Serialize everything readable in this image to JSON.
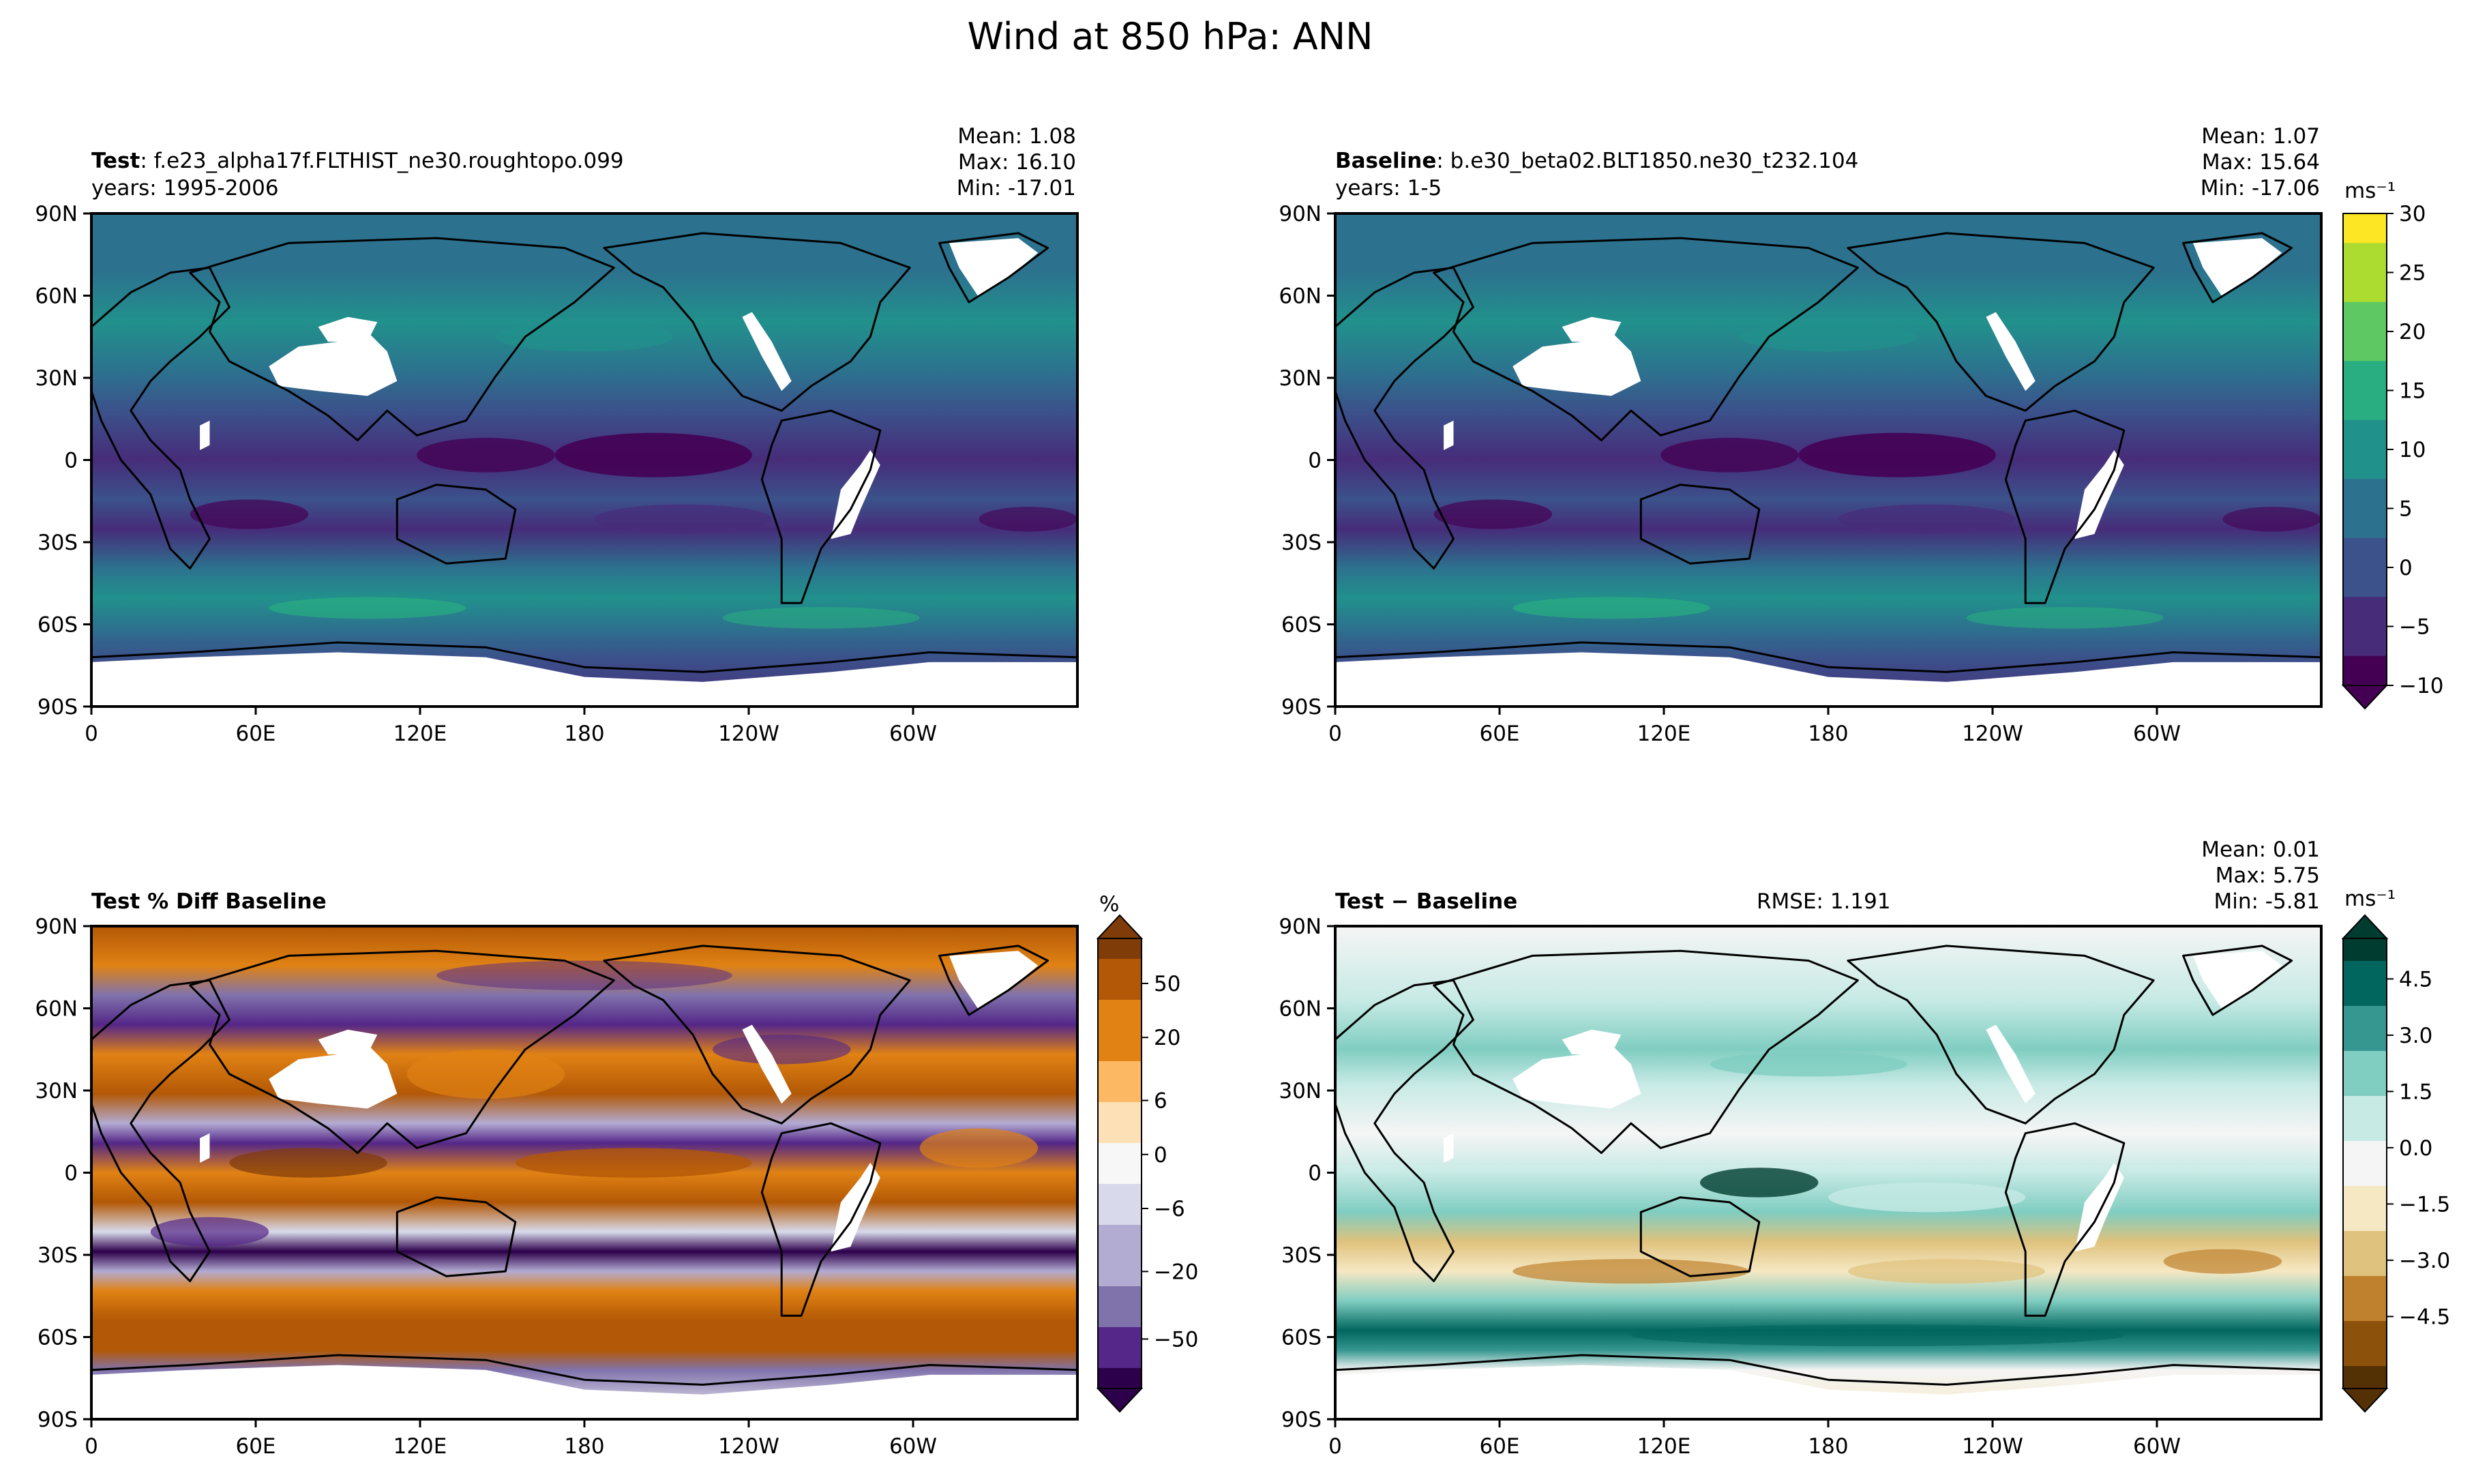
{
  "title": "Wind at 850 hPa: ANN",
  "colors": {
    "land_mask": "#ffffff",
    "coast": "#000000",
    "viridis": [
      "#440154",
      "#472c7a",
      "#3b528b",
      "#2c728e",
      "#21918c",
      "#28ae80",
      "#5ec962",
      "#addc30",
      "#fde725"
    ],
    "puor": [
      "#2d004b",
      "#542788",
      "#8073ac",
      "#b2abd2",
      "#d8daeb",
      "#f7f7f7",
      "#fee0b6",
      "#fdb863",
      "#e08214",
      "#b35806",
      "#7f3b08"
    ],
    "brbg": [
      "#543005",
      "#8c510a",
      "#bf812d",
      "#dfc27d",
      "#f6e8c3",
      "#f5f5f5",
      "#c7eae5",
      "#80cdc1",
      "#35978f",
      "#01665e",
      "#003c30"
    ]
  },
  "common": {
    "lat_ticks": [
      "90N",
      "60N",
      "30N",
      "0",
      "30S",
      "60S",
      "90S"
    ],
    "lon_ticks": [
      "0",
      "60E",
      "120E",
      "180",
      "120W",
      "60W"
    ]
  },
  "panels": {
    "test": {
      "label_bold": "Test",
      "label_rest": ": f.e23_alpha17f.FLTHIST_ne30.roughtopo.099",
      "years": "years: 1995-2006",
      "mean": "Mean:  1.08",
      "max": "Max: 16.10",
      "min": "Min: -17.01"
    },
    "baseline": {
      "label_bold": "Baseline",
      "label_rest": ": b.e30_beta02.BLT1850.ne30_t232.104",
      "years": "years: 1-5",
      "mean": "Mean:  1.07",
      "max": "Max: 15.64",
      "min": "Min: -17.06"
    },
    "pctdiff": {
      "label": "Test % Diff Baseline"
    },
    "diff": {
      "label_bold": "Test",
      "label_rest": " − Baseline",
      "rmse": "RMSE: 1.191",
      "mean": "Mean:  0.01",
      "max": "Max:  5.75",
      "min": "Min: -5.81"
    }
  },
  "colorbars": {
    "top": {
      "unit": "ms⁻¹",
      "ticks": [
        "30",
        "25",
        "20",
        "15",
        "10",
        "5",
        "0",
        "−5",
        "−10"
      ]
    },
    "pct": {
      "unit": "%",
      "ticks": [
        "50",
        "20",
        "6",
        "0",
        "−6",
        "−20",
        "−50"
      ]
    },
    "diff": {
      "unit": "ms⁻¹",
      "ticks": [
        "4.5",
        "3.0",
        "1.5",
        "0.0",
        "−1.5",
        "−3.0",
        "−4.5"
      ]
    }
  },
  "chart_data": [
    {
      "type": "heatmap",
      "title": "Test: f.e23_alpha17f.FLTHIST_ne30.roughtopo.099 (years: 1995-2006)",
      "variable": "Wind at 850 hPa, annual mean (ms⁻¹)",
      "x_range": [
        0,
        360
      ],
      "y_range": [
        -90,
        90
      ],
      "stats": {
        "mean": 1.08,
        "max": 16.1,
        "min": -17.01
      },
      "colorbar_range": [
        -10,
        30
      ]
    },
    {
      "type": "heatmap",
      "title": "Baseline: b.e30_beta02.BLT1850.ne30_t232.104 (years: 1-5)",
      "variable": "Wind at 850 hPa, annual mean (ms⁻¹)",
      "x_range": [
        0,
        360
      ],
      "y_range": [
        -90,
        90
      ],
      "stats": {
        "mean": 1.07,
        "max": 15.64,
        "min": -17.06
      },
      "colorbar_range": [
        -10,
        30
      ]
    },
    {
      "type": "heatmap",
      "title": "Test % Diff Baseline",
      "x_range": [
        0,
        360
      ],
      "y_range": [
        -90,
        90
      ],
      "colorbar_ticks": [
        -50,
        -20,
        -6,
        0,
        6,
        20,
        50
      ],
      "unit": "%"
    },
    {
      "type": "heatmap",
      "title": "Test − Baseline",
      "x_range": [
        0,
        360
      ],
      "y_range": [
        -90,
        90
      ],
      "stats": {
        "mean": 0.01,
        "max": 5.75,
        "min": -5.81,
        "rmse": 1.191
      },
      "colorbar_ticks": [
        -4.5,
        -3.0,
        -1.5,
        0.0,
        1.5,
        3.0,
        4.5
      ],
      "unit": "ms⁻¹"
    }
  ]
}
